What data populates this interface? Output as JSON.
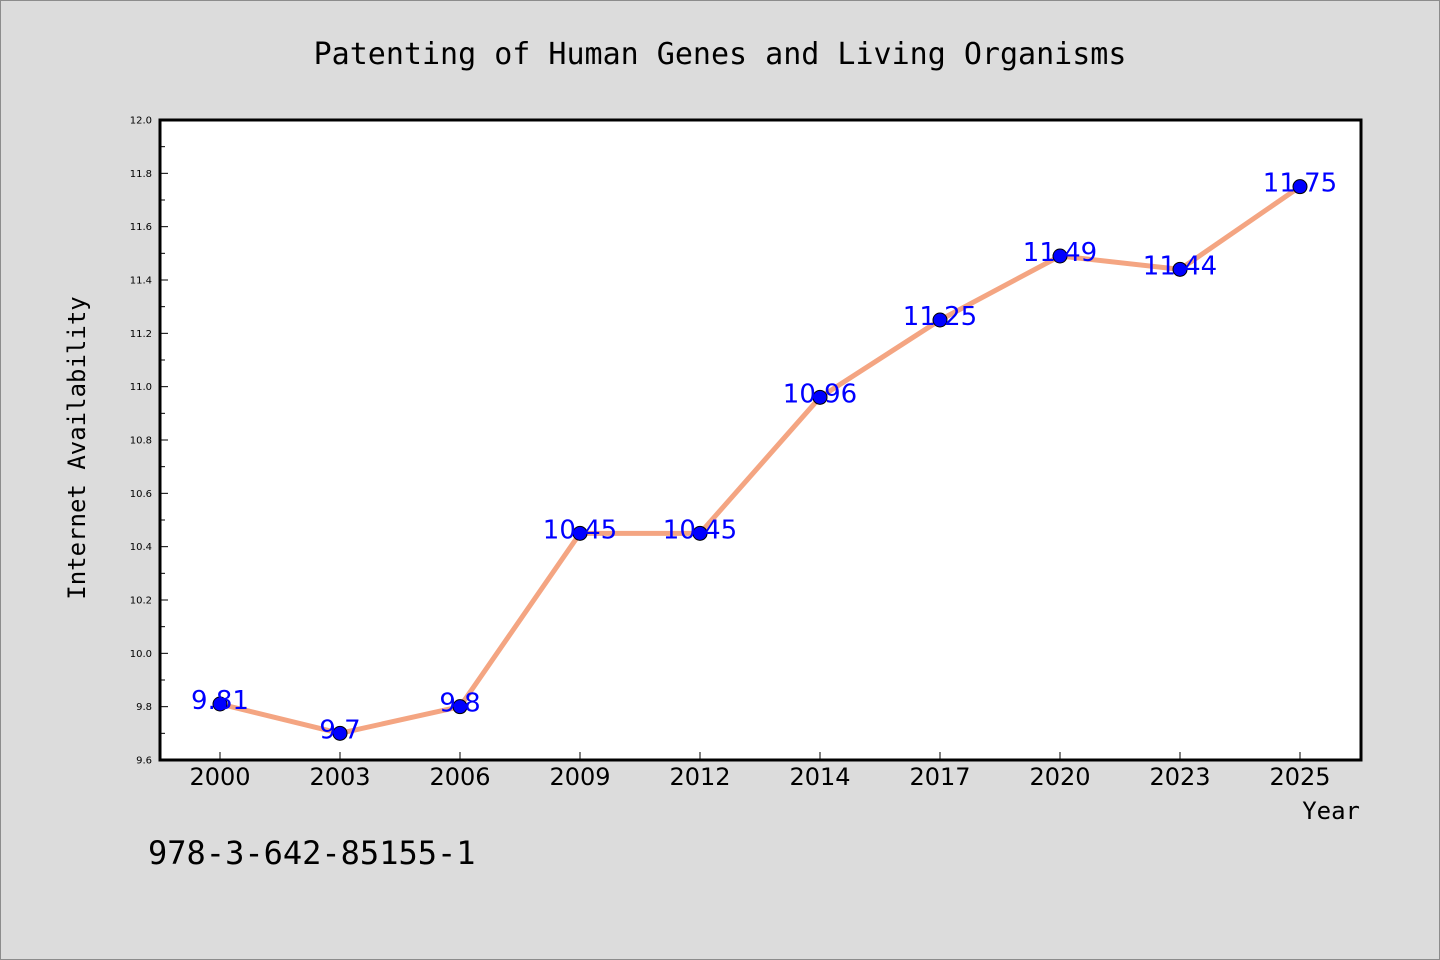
{
  "chart_data": {
    "type": "line",
    "title": "Patenting of Human Genes and Living Organisms",
    "xlabel": "Year",
    "ylabel": "Internet Availability",
    "categories": [
      "2000",
      "2003",
      "2006",
      "2009",
      "2012",
      "2014",
      "2017",
      "2020",
      "2023",
      "2025"
    ],
    "values": [
      9.81,
      9.7,
      9.8,
      10.45,
      10.45,
      10.96,
      11.25,
      11.49,
      11.44,
      11.75
    ],
    "data_labels": [
      "9.81",
      "9.7",
      "9.8",
      "10.45",
      "10.45",
      "10.96",
      "11.25",
      "11.49",
      "11.44",
      "11.75"
    ],
    "ylim": [
      9.6,
      12.0
    ],
    "yticks": [
      "9.6",
      "9.8",
      "10.0",
      "10.2",
      "10.4",
      "10.6",
      "10.8",
      "11.0",
      "11.2",
      "11.4",
      "11.6",
      "11.8",
      "12.0"
    ],
    "grid": false,
    "legend": "none",
    "line_color": "#f4a582",
    "marker_color": "#0000ff",
    "label_color": "#0000ff",
    "background_color": "#dcdcdc",
    "plot_background": "#ffffff"
  },
  "footnote": "978-3-642-85155-1"
}
